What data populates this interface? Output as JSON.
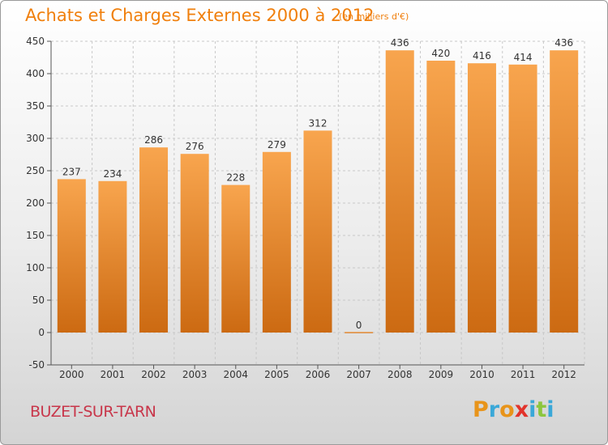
{
  "header": {
    "title": "Achats et Charges Externes 2000 à 2012",
    "subtitle": "(en milliers d'€)"
  },
  "footer": {
    "commune": "BUZET-SUR-TARN",
    "logo": "Proxiti"
  },
  "colors": {
    "bar_top": "#f8a54e",
    "bar_bottom": "#cc6a12",
    "title": "#f07f0c",
    "commune": "#c8364a"
  },
  "chart_data": {
    "type": "bar",
    "categories": [
      "2000",
      "2001",
      "2002",
      "2003",
      "2004",
      "2005",
      "2006",
      "2007",
      "2008",
      "2009",
      "2010",
      "2011",
      "2012"
    ],
    "values": [
      237,
      234,
      286,
      276,
      228,
      279,
      312,
      0,
      436,
      420,
      416,
      414,
      436
    ],
    "ylim": [
      -50,
      450
    ],
    "yticks": [
      -50,
      0,
      50,
      100,
      150,
      200,
      250,
      300,
      350,
      400,
      450
    ],
    "grid": true,
    "legend": "none"
  }
}
